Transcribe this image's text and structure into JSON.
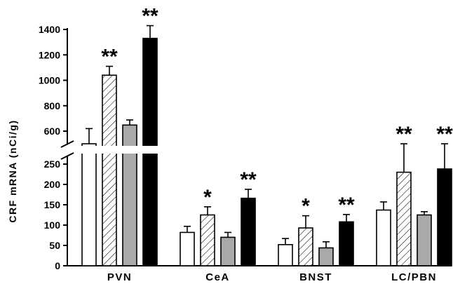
{
  "chart_data": {
    "type": "bar",
    "ylabel": "CRF mRNA (nCi/g)",
    "y_axis_break": true,
    "upper_axis": {
      "ticks": [
        600,
        800,
        1000,
        1200,
        1400
      ]
    },
    "lower_axis": {
      "ticks": [
        0,
        50,
        100,
        150,
        200,
        250
      ]
    },
    "categories": [
      "PVN",
      "CeA",
      "BNST",
      "LC/PBN"
    ],
    "series": [
      {
        "fill": "white",
        "values": [
          580,
          82,
          52,
          137
        ],
        "errors": [
          40,
          15,
          15,
          20
        ]
      },
      {
        "fill": "hatched",
        "values": [
          1040,
          125,
          93,
          230
        ],
        "errors": [
          70,
          20,
          30,
          25
        ]
      },
      {
        "fill": "gray",
        "values": [
          648,
          70,
          44,
          125
        ],
        "errors": [
          40,
          12,
          15,
          8
        ]
      },
      {
        "fill": "black",
        "values": [
          1330,
          166,
          108,
          238
        ],
        "errors": [
          100,
          22,
          18,
          20
        ]
      }
    ],
    "annotations": [
      [
        "",
        "**",
        "",
        "**"
      ],
      [
        "",
        "*",
        "",
        "**"
      ],
      [
        "",
        "*",
        "",
        "**"
      ],
      [
        "",
        "**",
        "",
        "**"
      ]
    ],
    "colors": {
      "white": "#ffffff",
      "gray": "#a9a9a9",
      "black": "#000000",
      "stroke": "#000000"
    },
    "grid": false,
    "legend": "none"
  }
}
